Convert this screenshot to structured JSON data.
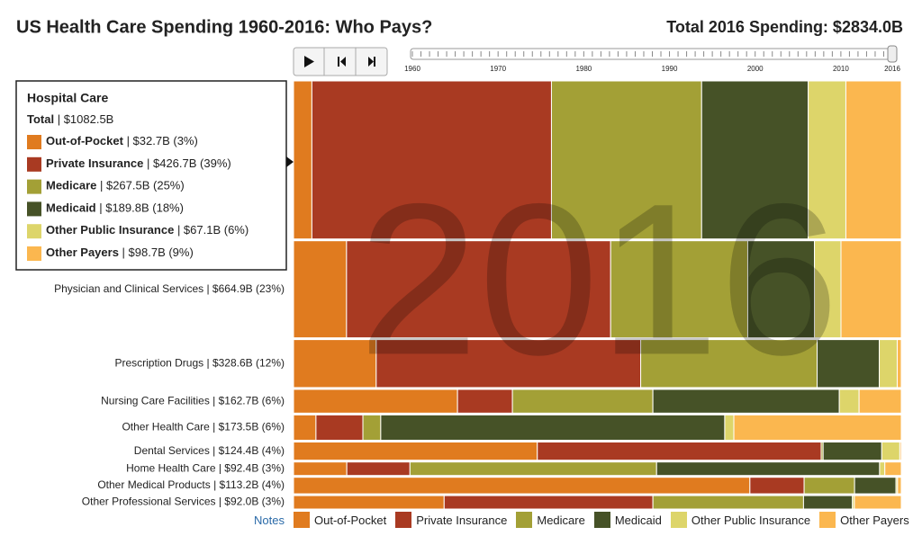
{
  "header": {
    "title": "US Health Care Spending 1960-2016: Who Pays?",
    "total": "Total 2016 Spending: $2834.0B"
  },
  "controls": {
    "year": 2016,
    "slider_ticks": [
      1960,
      1970,
      1980,
      1990,
      2000,
      2010,
      2016
    ]
  },
  "notes": "Notes",
  "tooltip": {
    "title": "Hospital Care",
    "total_label": "Total",
    "total": " | $1082.5B",
    "items": [
      " | $32.7B (3%)",
      " | $426.7B (39%)",
      " | $267.5B (25%)",
      " | $189.8B (18%)",
      " | $67.1B (6%)",
      " | $98.7B (9%)"
    ]
  },
  "chart_data": {
    "type": "mosaic",
    "categories": [
      null,
      "Physician and Clinical Services | $664.9B (23%)",
      "Prescription Drugs | $328.6B (12%)",
      "Nursing Care Facilities | $162.7B (6%)",
      "Other Health Care | $173.5B (6%)",
      "Dental Services | $124.4B (4%)",
      "Home Health Care | $92.4B (3%)",
      "Other Medical Products | $113.2B (4%)",
      "Other Professional Services | $92.0B (3%)"
    ],
    "totals": [
      1082.5,
      664.9,
      328.6,
      162.7,
      173.5,
      124.4,
      92.4,
      113.2,
      92.0
    ],
    "series": [
      {
        "name": "Out-of-Pocket",
        "color": "#e07b1f",
        "values": [
          32.7,
          58,
          44.7,
          43.9,
          6.4,
          49.9,
          8.1,
          85,
          22.8
        ]
      },
      {
        "name": "Private Insurance",
        "color": "#a93a22",
        "values": [
          426.7,
          289,
          143,
          14.7,
          13.4,
          58.1,
          9.6,
          10.1,
          31.6
        ]
      },
      {
        "name": "Medicare",
        "color": "#a3a036",
        "values": [
          267.5,
          150,
          95.4,
          37.6,
          5.1,
          0.4,
          37.5,
          9.4,
          22.8
        ]
      },
      {
        "name": "Medicaid",
        "color": "#465227",
        "values": [
          189.8,
          73,
          33.6,
          49.9,
          98.2,
          12,
          33.9,
          7.7,
          7.4
        ]
      },
      {
        "name": "Other Public Insurance",
        "color": "#ddd56a",
        "values": [
          67.1,
          29,
          9.7,
          5.3,
          2.6,
          3.7,
          0.8,
          0.3,
          0.3
        ]
      },
      {
        "name": "Other Payers",
        "color": "#fbb74f",
        "values": [
          98.7,
          66,
          2.2,
          11.3,
          47.8,
          0.3,
          2.5,
          0.7,
          7.1
        ]
      }
    ]
  }
}
